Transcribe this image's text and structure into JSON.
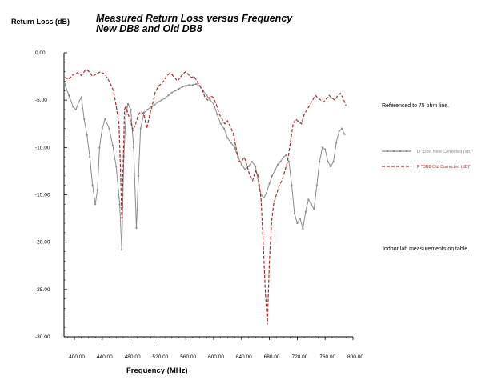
{
  "chart_data": {
    "type": "line",
    "title_line1": "Measured Return Loss versus Frequency",
    "title_line2": "New DB8 and Old DB8",
    "xlabel": "Frequency (MHz)",
    "ylabel": "Return Loss (dB)",
    "xlim": [
      385,
      800
    ],
    "ylim": [
      -30,
      0
    ],
    "x_ticks": [
      "400.00",
      "440.00",
      "480.00",
      "520.00",
      "560.00",
      "600.00",
      "640.00",
      "680.00",
      "720.00",
      "760.00",
      "800.00"
    ],
    "x_tick_values": [
      400,
      440,
      480,
      520,
      560,
      600,
      640,
      680,
      720,
      760,
      800
    ],
    "y_ticks": [
      "0.00",
      "-5.00",
      "-10.00",
      "-15.00",
      "-20.00",
      "-25.00",
      "-30.00"
    ],
    "y_tick_values": [
      0,
      -5,
      -10,
      -15,
      -20,
      -25,
      -30
    ],
    "legend_placement": "right",
    "annotations": [
      "Referenced to 75 ohm line.",
      "Indoor lab measurements on table."
    ],
    "series": [
      {
        "name": "D \"DB8 New Corrected (dB)\"",
        "color": "#8c8c8c",
        "style": "solid-with-markers",
        "points": [
          [
            386,
            -3.3
          ],
          [
            392,
            -4.5
          ],
          [
            398,
            -5.7
          ],
          [
            402,
            -6.0
          ],
          [
            406,
            -5.2
          ],
          [
            410,
            -4.7
          ],
          [
            414,
            -7.0
          ],
          [
            418,
            -8.7
          ],
          [
            422,
            -11.0
          ],
          [
            426,
            -14.0
          ],
          [
            430,
            -16.0
          ],
          [
            433,
            -14.5
          ],
          [
            436,
            -10.0
          ],
          [
            440,
            -8.0
          ],
          [
            444,
            -7.0
          ],
          [
            450,
            -8.0
          ],
          [
            455,
            -9.8
          ],
          [
            460,
            -12.0
          ],
          [
            465,
            -16.0
          ],
          [
            468,
            -20.8
          ],
          [
            471,
            -11.0
          ],
          [
            474,
            -6.5
          ],
          [
            477,
            -5.4
          ],
          [
            481,
            -6.0
          ],
          [
            485,
            -10.0
          ],
          [
            489,
            -18.5
          ],
          [
            492,
            -13.0
          ],
          [
            495,
            -8.0
          ],
          [
            500,
            -6.3
          ],
          [
            505,
            -6.0
          ],
          [
            510,
            -5.7
          ],
          [
            515,
            -5.5
          ],
          [
            520,
            -5.2
          ],
          [
            525,
            -5.0
          ],
          [
            530,
            -4.8
          ],
          [
            535,
            -4.5
          ],
          [
            540,
            -4.2
          ],
          [
            545,
            -4.0
          ],
          [
            550,
            -3.8
          ],
          [
            555,
            -3.6
          ],
          [
            560,
            -3.5
          ],
          [
            565,
            -3.4
          ],
          [
            570,
            -3.4
          ],
          [
            575,
            -3.3
          ],
          [
            580,
            -3.5
          ],
          [
            585,
            -4.0
          ],
          [
            590,
            -4.5
          ],
          [
            595,
            -5.0
          ],
          [
            600,
            -5.4
          ],
          [
            605,
            -6.5
          ],
          [
            610,
            -7.5
          ],
          [
            615,
            -8.0
          ],
          [
            620,
            -9.0
          ],
          [
            625,
            -9.5
          ],
          [
            630,
            -10.0
          ],
          [
            635,
            -11.0
          ],
          [
            640,
            -11.8
          ],
          [
            645,
            -12.3
          ],
          [
            650,
            -12.0
          ],
          [
            655,
            -11.5
          ],
          [
            660,
            -12.0
          ],
          [
            665,
            -14.0
          ],
          [
            668,
            -15.0
          ],
          [
            672,
            -15.3
          ],
          [
            676,
            -14.8
          ],
          [
            680,
            -13.8
          ],
          [
            684,
            -13.0
          ],
          [
            688,
            -12.4
          ],
          [
            692,
            -11.8
          ],
          [
            696,
            -11.5
          ],
          [
            700,
            -11.0
          ],
          [
            704,
            -10.8
          ],
          [
            708,
            -11.5
          ],
          [
            712,
            -14.0
          ],
          [
            716,
            -17.0
          ],
          [
            720,
            -18.0
          ],
          [
            724,
            -17.5
          ],
          [
            728,
            -18.6
          ],
          [
            732,
            -16.8
          ],
          [
            736,
            -15.5
          ],
          [
            740,
            -16.0
          ],
          [
            744,
            -16.5
          ],
          [
            748,
            -14.0
          ],
          [
            752,
            -11.5
          ],
          [
            756,
            -10.0
          ],
          [
            760,
            -10.2
          ],
          [
            764,
            -11.5
          ],
          [
            768,
            -12.0
          ],
          [
            772,
            -11.5
          ],
          [
            776,
            -9.5
          ],
          [
            780,
            -8.3
          ],
          [
            784,
            -8.0
          ],
          [
            788,
            -8.6
          ]
        ]
      },
      {
        "name": "F \"DB8 Old Corrected (dB)\"",
        "color": "#a52a2a",
        "style": "dashed",
        "points": [
          [
            386,
            -2.6
          ],
          [
            392,
            -2.8
          ],
          [
            398,
            -2.3
          ],
          [
            404,
            -2.1
          ],
          [
            410,
            -2.4
          ],
          [
            416,
            -1.8
          ],
          [
            420,
            -1.9
          ],
          [
            426,
            -2.5
          ],
          [
            432,
            -2.2
          ],
          [
            438,
            -2.0
          ],
          [
            444,
            -2.3
          ],
          [
            450,
            -3.0
          ],
          [
            456,
            -4.0
          ],
          [
            460,
            -5.6
          ],
          [
            464,
            -7.5
          ],
          [
            466,
            -12.0
          ],
          [
            468,
            -17.5
          ],
          [
            470,
            -12.0
          ],
          [
            472,
            -6.0
          ],
          [
            474,
            -5.5
          ],
          [
            477,
            -6.5
          ],
          [
            480,
            -7.0
          ],
          [
            484,
            -8.2
          ],
          [
            488,
            -7.5
          ],
          [
            492,
            -6.5
          ],
          [
            496,
            -6.2
          ],
          [
            500,
            -6.5
          ],
          [
            504,
            -8.0
          ],
          [
            508,
            -6.6
          ],
          [
            512,
            -5.5
          ],
          [
            516,
            -4.2
          ],
          [
            520,
            -3.6
          ],
          [
            524,
            -3.3
          ],
          [
            528,
            -3.0
          ],
          [
            532,
            -2.5
          ],
          [
            536,
            -2.2
          ],
          [
            540,
            -2.3
          ],
          [
            544,
            -2.6
          ],
          [
            548,
            -3.0
          ],
          [
            552,
            -2.6
          ],
          [
            556,
            -2.2
          ],
          [
            560,
            -2.0
          ],
          [
            564,
            -2.3
          ],
          [
            568,
            -2.6
          ],
          [
            572,
            -2.5
          ],
          [
            576,
            -3.0
          ],
          [
            580,
            -3.5
          ],
          [
            584,
            -4.0
          ],
          [
            588,
            -4.8
          ],
          [
            592,
            -5.0
          ],
          [
            596,
            -4.5
          ],
          [
            600,
            -4.8
          ],
          [
            604,
            -5.5
          ],
          [
            608,
            -6.5
          ],
          [
            612,
            -7.0
          ],
          [
            616,
            -7.5
          ],
          [
            620,
            -7.2
          ],
          [
            624,
            -7.8
          ],
          [
            628,
            -8.5
          ],
          [
            632,
            -10.0
          ],
          [
            636,
            -11.5
          ],
          [
            640,
            -11.5
          ],
          [
            644,
            -11.0
          ],
          [
            648,
            -12.0
          ],
          [
            652,
            -13.0
          ],
          [
            656,
            -13.5
          ],
          [
            660,
            -12.5
          ],
          [
            664,
            -13.0
          ],
          [
            668,
            -15.5
          ],
          [
            671,
            -20.0
          ],
          [
            674,
            -25.0
          ],
          [
            677,
            -28.7
          ],
          [
            680,
            -22.0
          ],
          [
            683,
            -18.0
          ],
          [
            686,
            -16.0
          ],
          [
            690,
            -15.0
          ],
          [
            694,
            -14.0
          ],
          [
            698,
            -13.5
          ],
          [
            702,
            -12.5
          ],
          [
            706,
            -11.5
          ],
          [
            710,
            -9.5
          ],
          [
            714,
            -7.5
          ],
          [
            718,
            -7.0
          ],
          [
            722,
            -7.3
          ],
          [
            726,
            -7.5
          ],
          [
            730,
            -6.5
          ],
          [
            734,
            -6.0
          ],
          [
            738,
            -5.5
          ],
          [
            742,
            -5.0
          ],
          [
            746,
            -4.5
          ],
          [
            750,
            -4.8
          ],
          [
            754,
            -5.0
          ],
          [
            758,
            -5.2
          ],
          [
            762,
            -4.8
          ],
          [
            766,
            -4.5
          ],
          [
            770,
            -4.8
          ],
          [
            774,
            -5.0
          ],
          [
            778,
            -4.5
          ],
          [
            782,
            -4.3
          ],
          [
            786,
            -4.8
          ],
          [
            790,
            -5.6
          ]
        ]
      }
    ]
  }
}
